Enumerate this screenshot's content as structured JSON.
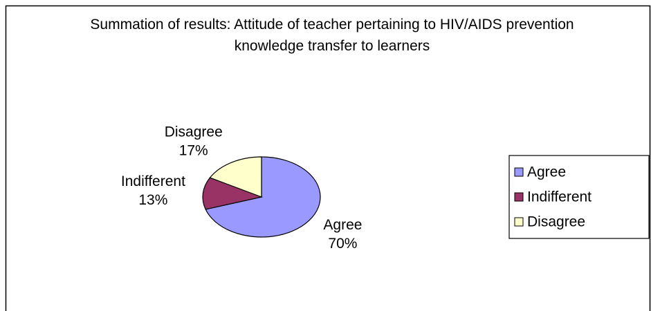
{
  "chart_data": {
    "type": "pie",
    "title": "Summation of results:  Attitude of teacher pertaining to HIV/AIDS prevention knowledge transfer to learners",
    "categories": [
      "Agree",
      "Indifferent",
      "Disagree"
    ],
    "values": [
      70,
      13,
      17
    ],
    "value_labels": [
      "70%",
      "13%",
      "17%"
    ],
    "colors": [
      "#9999ff",
      "#993366",
      "#ffffcc"
    ],
    "legend": "right"
  }
}
